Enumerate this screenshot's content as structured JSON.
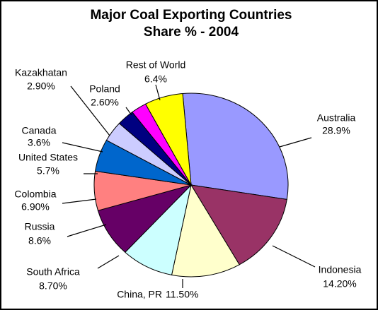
{
  "chart_data": {
    "type": "pie",
    "title": "Major Coal Exporting Countries",
    "subtitle": "Share % - 2004",
    "categories": [
      "Australia",
      "Indonesia",
      "China, PR",
      "South Africa",
      "Russia",
      "Colombia",
      "United States",
      "Canada",
      "Kazakhatan",
      "Poland",
      "Rest of World"
    ],
    "values": [
      28.9,
      14.2,
      11.5,
      8.7,
      8.6,
      6.9,
      5.7,
      3.6,
      2.9,
      2.6,
      6.4
    ],
    "value_labels": [
      "28.9%",
      "14.20%",
      "11.50%",
      "8.70%",
      "8.6%",
      "6.90%",
      "5.7%",
      "3.6%",
      "2.90%",
      "2.60%",
      "6.4%"
    ],
    "colors": [
      "#9999ff",
      "#993366",
      "#ffffcc",
      "#ccffff",
      "#660066",
      "#ff8080",
      "#0066cc",
      "#ccccff",
      "#000080",
      "#ff00ff",
      "#ffff00"
    ]
  }
}
